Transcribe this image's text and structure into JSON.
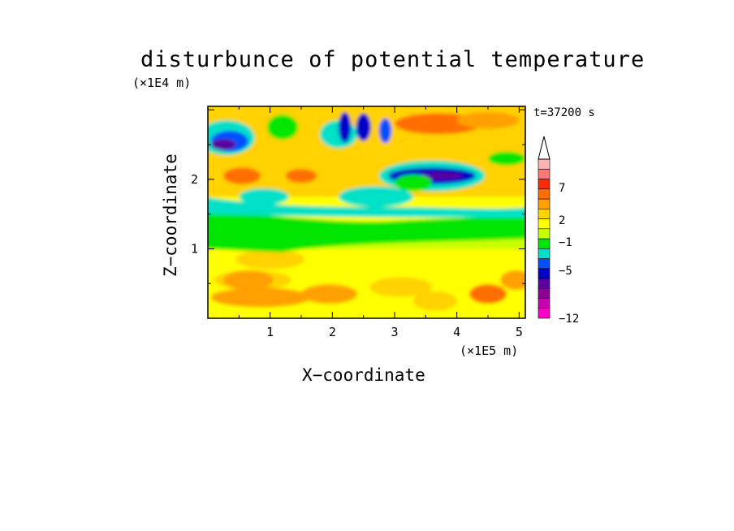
{
  "chart_data": {
    "type": "heatmap",
    "title": "disturbunce of potential temperature",
    "time_label": "t=37200 s",
    "xlabel": "X−coordinate",
    "ylabel": "Z−coordinate",
    "x_unit": "(×1E5 m)",
    "y_unit": "(×1E4 m)",
    "xlim": [
      0,
      5.1
    ],
    "ylim": [
      0,
      3.05
    ],
    "x_ticks": [
      "1",
      "2",
      "3",
      "4",
      "5"
    ],
    "y_ticks": [
      "1",
      "2"
    ],
    "colorbar": {
      "levels": [
        "−12",
        "−5",
        "−1",
        "2",
        "7"
      ],
      "colors": [
        "#ff00c8",
        "#c800b4",
        "#8c0096",
        "#5a00a0",
        "#0000c8",
        "#0050ff",
        "#00e1c8",
        "#00e600",
        "#c8ff00",
        "#ffff00",
        "#ffd200",
        "#ffa000",
        "#ff6e00",
        "#ff2800",
        "#ff7878",
        "#ffb4b4"
      ],
      "extend": "max"
    },
    "regions": [
      {
        "x": [
          0.0,
          5.1
        ],
        "z": [
          0.0,
          1.15
        ],
        "level": "2",
        "description": "lower warm band, yellow-orange"
      },
      {
        "x": [
          0.0,
          5.1
        ],
        "z": [
          1.0,
          1.55
        ],
        "level": "−1",
        "description": "green band"
      },
      {
        "x": [
          2.7,
          4.4
        ],
        "z": [
          1.9,
          2.2
        ],
        "level": "−5",
        "description": "dark blue cold core"
      },
      {
        "x": [
          0.0,
          0.9
        ],
        "z": [
          2.35,
          2.75
        ],
        "level": "−5",
        "description": "blue upper-left cells"
      },
      {
        "x": [
          3.2,
          4.4
        ],
        "z": [
          2.65,
          2.95
        ],
        "level": "7",
        "description": "upper warm orange"
      },
      {
        "x": [
          0.1,
          0.9
        ],
        "z": [
          1.95,
          2.15
        ],
        "level": "7",
        "description": "orange cell left"
      }
    ]
  }
}
